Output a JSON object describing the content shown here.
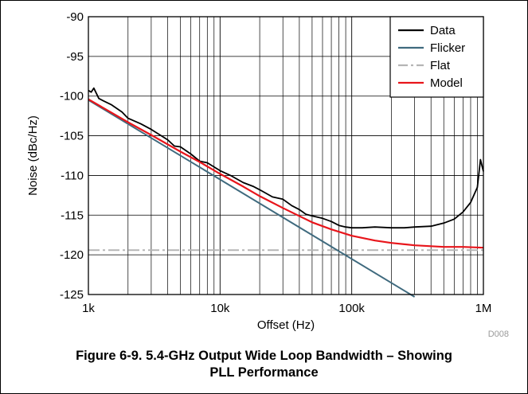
{
  "chart_data": {
    "type": "line",
    "xlabel": "Offset (Hz)",
    "ylabel": "Noise (dBc/Hz)",
    "xscale": "log",
    "xlim": [
      1000,
      1000000
    ],
    "ylim": [
      -125,
      -90
    ],
    "x_ticks": [
      1000,
      10000,
      100000,
      1000000
    ],
    "x_tick_labels": [
      "1k",
      "10k",
      "100k",
      "1M"
    ],
    "y_ticks": [
      -90,
      -95,
      -100,
      -105,
      -110,
      -115,
      -120,
      -125
    ],
    "y_tick_labels": [
      "-90",
      "-95",
      "-100",
      "-105",
      "-110",
      "-115",
      "-120",
      "-125"
    ],
    "grid": true,
    "legend_position": "top-right",
    "figure_code": "D008",
    "series": [
      {
        "name": "Data",
        "color": "#000000",
        "x": [
          1000,
          1050,
          1100,
          1200,
          1300,
          1500,
          1800,
          2000,
          2500,
          3000,
          3500,
          4000,
          4500,
          5000,
          6000,
          7000,
          8000,
          10000,
          12000,
          15000,
          18000,
          20000,
          25000,
          30000,
          35000,
          40000,
          45000,
          50000,
          60000,
          70000,
          80000,
          90000,
          100000,
          120000,
          150000,
          200000,
          250000,
          300000,
          400000,
          500000,
          600000,
          700000,
          800000,
          900000,
          950000,
          1000000
        ],
        "y": [
          -99.3,
          -99.5,
          -99.0,
          -100.3,
          -100.6,
          -101.1,
          -102.0,
          -102.8,
          -103.5,
          -104.2,
          -104.9,
          -105.5,
          -106.3,
          -106.4,
          -107.3,
          -108.2,
          -108.4,
          -109.4,
          -110.0,
          -110.9,
          -111.4,
          -111.8,
          -112.7,
          -113.0,
          -113.8,
          -114.3,
          -114.9,
          -115.1,
          -115.4,
          -115.8,
          -116.3,
          -116.5,
          -116.6,
          -116.6,
          -116.5,
          -116.6,
          -116.6,
          -116.5,
          -116.4,
          -116.0,
          -115.5,
          -114.6,
          -113.4,
          -111.5,
          -108.0,
          -109.5
        ]
      },
      {
        "name": "Flicker",
        "color": "#3f6a7e",
        "x": [
          1000,
          300000
        ],
        "y": [
          -100.5,
          -125.3
        ]
      },
      {
        "name": "Flat",
        "color": "#b5b5b5",
        "x": [
          1000,
          1000000
        ],
        "y": [
          -119.4,
          -119.4
        ]
      },
      {
        "name": "Model",
        "color": "#e8151b",
        "x": [
          1000,
          2000,
          3000,
          5000,
          7000,
          10000,
          15000,
          20000,
          30000,
          50000,
          70000,
          100000,
          150000,
          200000,
          300000,
          500000,
          700000,
          1000000
        ],
        "y": [
          -100.4,
          -103.3,
          -104.9,
          -107.0,
          -108.3,
          -109.8,
          -111.4,
          -112.6,
          -114.1,
          -115.9,
          -116.8,
          -117.6,
          -118.2,
          -118.5,
          -118.8,
          -119.0,
          -119.0,
          -119.1
        ]
      }
    ]
  },
  "caption": {
    "line1": "Figure 6-9. 5.4-GHz Output Wide Loop Bandwidth – Showing",
    "line2": "PLL Performance"
  }
}
